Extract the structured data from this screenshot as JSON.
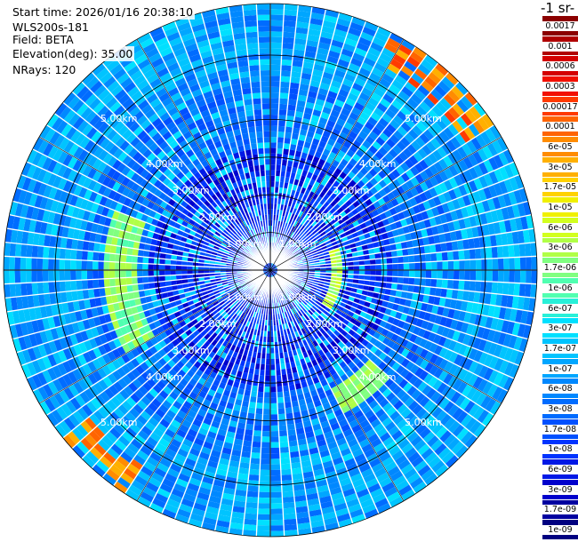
{
  "info": {
    "start_time": "Start time: 2026/01/16 20:38:10",
    "instrument": "WLS200s-181",
    "field": "Field: BETA",
    "elevation": "Elevation(deg): 35.00",
    "nrays": "NRays: 120"
  },
  "units_label": "-1 sr-",
  "chart_data": {
    "type": "heatmap",
    "projection": "polar PPI",
    "field": "BETA",
    "n_rays": 120,
    "range_rings_km": [
      1,
      2,
      3,
      4,
      5
    ],
    "ring_labels": [
      "1.00km",
      "2.00km",
      "3.00km",
      "4.00km",
      "5.00km"
    ],
    "colorbar_ticks": [
      "0.0017",
      "0.001",
      "0.0006",
      "0.0003",
      "0.00017",
      "0.0001",
      "6e-05",
      "3e-05",
      "1.7e-05",
      "1e-05",
      "6e-06",
      "3e-06",
      "1.7e-06",
      "1e-06",
      "6e-07",
      "3e-07",
      "1.7e-07",
      "1e-07",
      "6e-08",
      "3e-08",
      "1.7e-08",
      "1e-08",
      "6e-09",
      "3e-09",
      "1.7e-09",
      "1e-09"
    ],
    "colorbar_colors": [
      "#8b0000",
      "#b00000",
      "#d40000",
      "#f21000",
      "#ff3a00",
      "#ff6400",
      "#ff8c00",
      "#ffb000",
      "#ffd200",
      "#f0f000",
      "#d2ff1e",
      "#b0ff46",
      "#80ff80",
      "#50ffb0",
      "#28f0d8",
      "#00e0ff",
      "#00c4ff",
      "#00a6ff",
      "#0088ff",
      "#006cff",
      "#0050ff",
      "#0034ff",
      "#0018e6",
      "#0000cc",
      "#0000a0",
      "#000080"
    ]
  }
}
